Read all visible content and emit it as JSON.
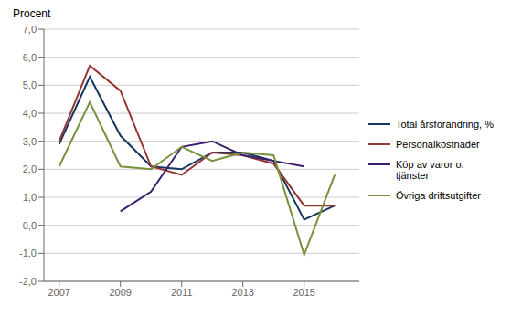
{
  "chart_data": {
    "type": "line",
    "ylabel": "Procent",
    "x": [
      2007,
      2008,
      2009,
      2010,
      2011,
      2012,
      2013,
      2014,
      2015,
      2016
    ],
    "series": [
      {
        "name": "Total årsförändring, %",
        "color": "#17375e",
        "values": [
          2.9,
          5.3,
          3.2,
          2.1,
          2.0,
          2.6,
          2.6,
          2.3,
          0.2,
          0.7
        ]
      },
      {
        "name": "Personalkostnader",
        "color": "#943634",
        "values": [
          3.0,
          5.7,
          4.8,
          2.1,
          1.8,
          2.6,
          2.5,
          2.2,
          0.7,
          0.7
        ]
      },
      {
        "name": "Köp av varor o.\ntjänster",
        "color": "#3b1f6e",
        "values": [
          null,
          null,
          0.5,
          1.2,
          2.8,
          3.0,
          2.5,
          2.3,
          2.1,
          null
        ]
      },
      {
        "name": "Övriga driftsutgifter",
        "color": "#76923c",
        "values": [
          2.1,
          4.4,
          2.1,
          2.0,
          2.8,
          2.3,
          2.6,
          2.5,
          -1.05,
          1.8
        ]
      }
    ],
    "xlim": [
      2006.5,
      2016.8
    ],
    "xticks": [
      2007,
      2009,
      2011,
      2013,
      2015
    ],
    "ylim": [
      -2.0,
      7.0
    ],
    "yticks": [
      {
        "value": -2.0,
        "label": "-2,0"
      },
      {
        "value": -1.0,
        "label": "-1,0"
      },
      {
        "value": 0.0,
        "label": "0,0"
      },
      {
        "value": 1.0,
        "label": "1,0"
      },
      {
        "value": 2.0,
        "label": "2,0"
      },
      {
        "value": 3.0,
        "label": "3,0"
      },
      {
        "value": 4.0,
        "label": "4,0"
      },
      {
        "value": 5.0,
        "label": "5,0"
      },
      {
        "value": 6.0,
        "label": "6,0"
      },
      {
        "value": 7.0,
        "label": "7,0"
      }
    ],
    "grid": "y",
    "legend": "right"
  }
}
